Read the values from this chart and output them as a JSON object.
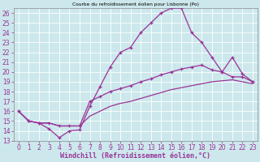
{
  "title": "Courbe du refroidissement éolien pour Lisbonne (Po)",
  "xlabel": "Windchill (Refroidissement éolien,°C)",
  "background_color": "#cce8ec",
  "line_color": "#993399",
  "xlim": [
    -0.5,
    23.5
  ],
  "ylim": [
    13,
    26.5
  ],
  "xticks": [
    0,
    1,
    2,
    3,
    4,
    5,
    6,
    7,
    8,
    9,
    10,
    11,
    12,
    13,
    14,
    15,
    16,
    17,
    18,
    19,
    20,
    21,
    22,
    23
  ],
  "yticks": [
    13,
    14,
    15,
    16,
    17,
    18,
    19,
    20,
    21,
    22,
    23,
    24,
    25,
    26
  ],
  "series1_x": [
    0,
    1,
    2,
    3,
    4,
    5,
    6,
    7,
    8,
    9,
    10,
    11,
    12,
    13,
    14,
    15,
    16,
    17,
    18,
    19,
    20,
    21,
    22,
    23
  ],
  "series1_y": [
    16.0,
    15.0,
    14.8,
    14.2,
    13.3,
    14.0,
    14.1,
    16.5,
    18.5,
    20.5,
    22.0,
    22.5,
    24.0,
    25.0,
    26.0,
    26.5,
    26.5,
    24.0,
    23.0,
    21.5,
    20.0,
    21.5,
    19.8,
    19.0
  ],
  "series2_x": [
    0,
    1,
    2,
    3,
    4,
    5,
    6,
    7,
    8,
    9,
    10,
    11,
    12,
    13,
    14,
    15,
    16,
    17,
    18,
    19,
    20,
    21,
    22,
    23
  ],
  "series2_y": [
    16.0,
    15.0,
    14.8,
    14.8,
    14.5,
    14.5,
    14.5,
    17.0,
    17.5,
    18.0,
    18.3,
    18.6,
    19.0,
    19.3,
    19.7,
    20.0,
    20.3,
    20.5,
    20.7,
    20.2,
    20.0,
    19.5,
    19.5,
    19.0
  ],
  "series3_x": [
    0,
    1,
    2,
    3,
    4,
    5,
    6,
    7,
    8,
    9,
    10,
    11,
    12,
    13,
    14,
    15,
    16,
    17,
    18,
    19,
    20,
    21,
    22,
    23
  ],
  "series3_y": [
    16.0,
    15.0,
    14.8,
    14.8,
    14.5,
    14.5,
    14.5,
    15.5,
    16.0,
    16.5,
    16.8,
    17.0,
    17.3,
    17.6,
    17.9,
    18.2,
    18.4,
    18.6,
    18.8,
    19.0,
    19.1,
    19.2,
    19.0,
    18.8
  ]
}
